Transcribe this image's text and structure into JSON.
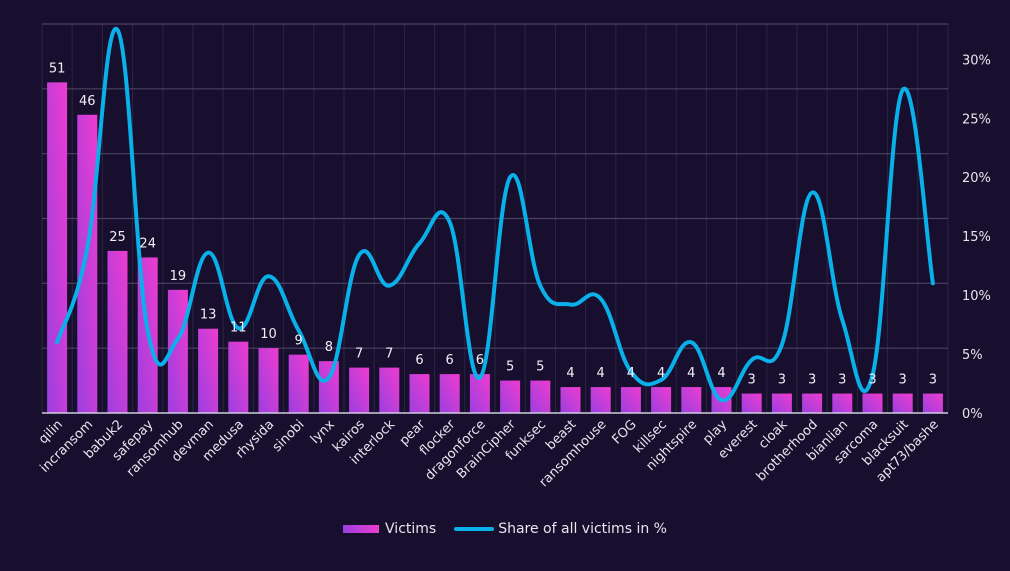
{
  "chart_data": {
    "type": "bar+line",
    "title": "",
    "xlabel": "",
    "ylabel": "",
    "categories": [
      "qilin",
      "incransom",
      "babuk2",
      "safepay",
      "ransomhub",
      "devman",
      "medusa",
      "rhysida",
      "sinobi",
      "lynx",
      "kairos",
      "interlock",
      "pear",
      "flocker",
      "dragonforce",
      "BrainCipher",
      "funksec",
      "beast",
      "ransomhouse",
      "FOG",
      "killsec",
      "nightspire",
      "play",
      "everest",
      "cloak",
      "brotherhood",
      "bianlian",
      "sarcoma",
      "blacksuit",
      "apt73/bashe"
    ],
    "series": [
      {
        "name": "Victims",
        "type": "bar",
        "axis": "left",
        "color_start": "#9b3fe0",
        "color_end": "#ee3ccf",
        "values": [
          51,
          46,
          25,
          24,
          19,
          13,
          11,
          10,
          9,
          8,
          7,
          7,
          6,
          6,
          6,
          5,
          5,
          4,
          4,
          4,
          4,
          4,
          4,
          3,
          3,
          3,
          3,
          3,
          3,
          3
        ],
        "data_labels": [
          "51",
          "46",
          "25",
          "24",
          "19",
          "13",
          "11",
          "10",
          "9",
          "8",
          "7",
          "7",
          "6",
          "6",
          "6",
          "5",
          "5",
          "4",
          "4",
          "4",
          "4",
          "4",
          "4",
          "3",
          "3",
          "3",
          "3",
          "3",
          "3",
          "3"
        ]
      },
      {
        "name": "Share of all victims in %",
        "type": "line",
        "smooth": true,
        "axis": "right",
        "color": "#0ab0ea",
        "values": [
          6.0,
          14.0,
          32.5,
          7.0,
          6.3,
          13.6,
          7.2,
          11.6,
          7.0,
          3.0,
          13.4,
          10.8,
          14.4,
          16.2,
          3.0,
          20.0,
          10.8,
          9.2,
          9.7,
          3.5,
          2.8,
          6.0,
          1.1,
          4.5,
          5.8,
          18.7,
          7.9,
          3.2,
          27.4,
          11.0
        ]
      }
    ],
    "left_axis": {
      "range": [
        0,
        60
      ],
      "gridlines": [
        10,
        20,
        30,
        40,
        50
      ],
      "tick_labels_visible": false
    },
    "right_axis": {
      "range": [
        0,
        33
      ],
      "ticks": [
        0,
        5,
        10,
        15,
        20,
        25,
        30
      ],
      "tick_labels": [
        "0%",
        "5%",
        "10%",
        "15%",
        "20%",
        "25%",
        "30%"
      ]
    },
    "grid": true,
    "legend": {
      "position": "bottom-center",
      "entries": [
        "Victims",
        "Share of all victims in %"
      ]
    },
    "colors": {
      "background": "#170f2d",
      "grid": "#4a4260",
      "text": "#e8e6ef"
    }
  }
}
